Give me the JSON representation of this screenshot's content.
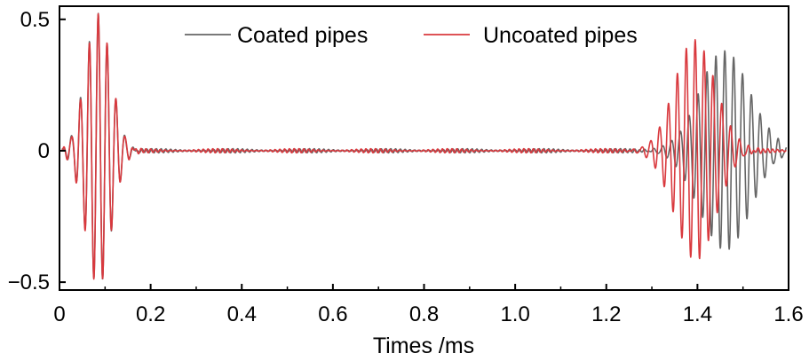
{
  "chart_data": {
    "type": "line",
    "title": "",
    "xlabel": "Times /ms",
    "ylabel": "",
    "xlim": [
      0,
      1.6
    ],
    "ylim": [
      -0.53,
      0.55
    ],
    "x_ticks": [
      0,
      0.2,
      0.4,
      0.6,
      0.8,
      1.0,
      1.2,
      1.4,
      1.6
    ],
    "x_tick_labels": [
      "0",
      "0.2",
      "0.4",
      "0.6",
      "0.8",
      "1.0",
      "1.2",
      "1.4",
      "1.6"
    ],
    "y_ticks": [
      0.5,
      0,
      -0.5
    ],
    "y_tick_labels": [
      "0.5",
      "0",
      "−0.5"
    ],
    "grid": false,
    "legend_position": "top-center",
    "series": [
      {
        "name": "Coated pipes",
        "color": "#666666",
        "packets": [
          {
            "center": 0.085,
            "width": 0.028,
            "amplitude": 0.52,
            "period": 0.0195
          },
          {
            "center": 1.46,
            "width": 0.055,
            "amplitude": 0.38,
            "period": 0.0195
          }
        ]
      },
      {
        "name": "Uncoated pipes",
        "color": "#d9393e",
        "packets": [
          {
            "center": 0.085,
            "width": 0.028,
            "amplitude": 0.52,
            "period": 0.0195
          },
          {
            "center": 1.395,
            "width": 0.045,
            "amplitude": 0.42,
            "period": 0.0195
          }
        ]
      }
    ]
  }
}
